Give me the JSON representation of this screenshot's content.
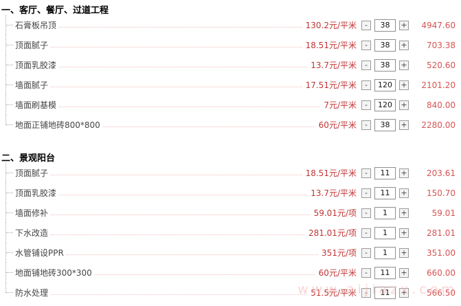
{
  "controls": {
    "minus": "-",
    "plus": "+"
  },
  "watermark": "www.aijiazx.com",
  "sections": [
    {
      "title": "一、客厅、餐厅、过道工程",
      "items": [
        {
          "name": "石膏板吊顶",
          "price": "130.2元/平米",
          "qty": "38",
          "total": "4947.60"
        },
        {
          "name": "顶面腻子",
          "price": "18.51元/平米",
          "qty": "38",
          "total": "703.38"
        },
        {
          "name": "顶面乳胶漆",
          "price": "13.7元/平米",
          "qty": "38",
          "total": "520.60"
        },
        {
          "name": "墙面腻子",
          "price": "17.51元/平米",
          "qty": "120",
          "total": "2101.20"
        },
        {
          "name": "墙面刷基模",
          "price": "7元/平米",
          "qty": "120",
          "total": "840.00"
        },
        {
          "name": "地面正铺地砖800*800",
          "price": "60元/平米",
          "qty": "38",
          "total": "2280.00"
        }
      ]
    },
    {
      "title": "二、景观阳台",
      "items": [
        {
          "name": "顶面腻子",
          "price": "18.51元/平米",
          "qty": "11",
          "total": "203.61"
        },
        {
          "name": "顶面乳胶漆",
          "price": "13.7元/平米",
          "qty": "11",
          "total": "150.70"
        },
        {
          "name": "墙面修补",
          "price": "59.01元/项",
          "qty": "1",
          "total": "59.01"
        },
        {
          "name": "下水改造",
          "price": "281.01元/项",
          "qty": "1",
          "total": "281.01"
        },
        {
          "name": "水管铺设PPR",
          "price": "351元/项",
          "qty": "1",
          "total": "351.00"
        },
        {
          "name": "地面铺地砖300*300",
          "price": "60元/平米",
          "qty": "11",
          "total": "660.00"
        },
        {
          "name": "防水处理",
          "price": "51.5元/平米",
          "qty": "11",
          "total": "566.50"
        }
      ]
    }
  ]
}
